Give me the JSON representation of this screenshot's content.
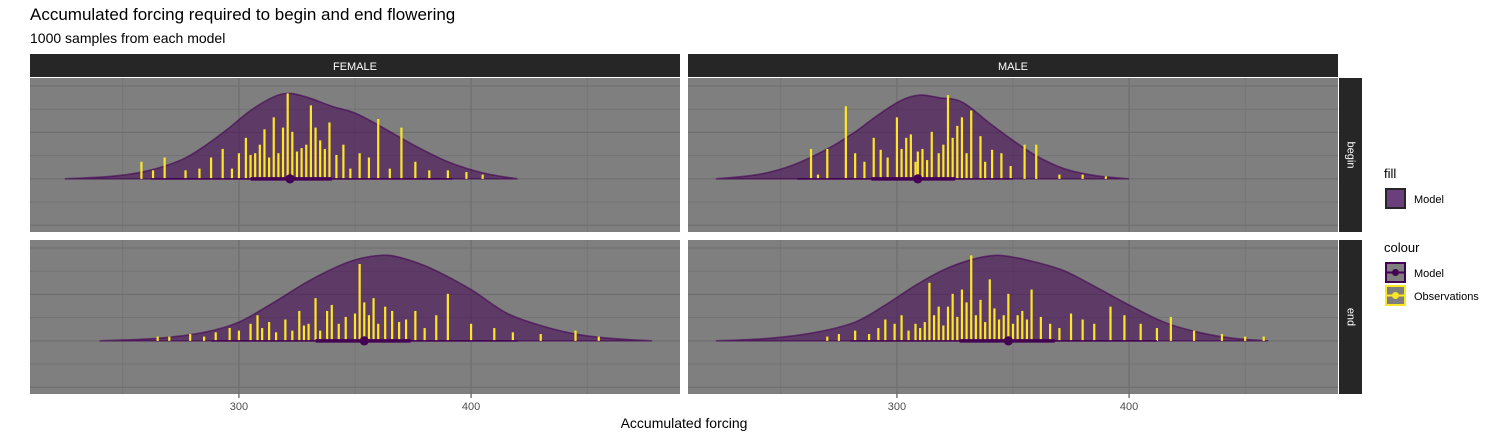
{
  "chart_data": {
    "type": "area",
    "title": "Accumulated forcing required to begin and end flowering",
    "subtitle": "1000 samples from each model",
    "xlabel": "Accumulated forcing",
    "ylabel": "",
    "x_ticks": [
      300,
      400
    ],
    "xlim": [
      210,
      490
    ],
    "columns": [
      "FEMALE",
      "MALE"
    ],
    "rows": [
      "begin",
      "end"
    ],
    "panels": [
      {
        "column": "FEMALE",
        "row": "begin",
        "density": {
          "x": [
            225,
            245,
            260,
            275,
            285,
            295,
            305,
            315,
            322,
            330,
            340,
            350,
            360,
            375,
            390,
            405,
            420
          ],
          "y": [
            0,
            0.03,
            0.09,
            0.22,
            0.38,
            0.58,
            0.8,
            0.96,
            1.0,
            0.95,
            0.85,
            0.77,
            0.63,
            0.4,
            0.2,
            0.07,
            0
          ]
        },
        "point_interval": {
          "median": 322,
          "inner": [
            305,
            340
          ],
          "outer": [
            262,
            392
          ]
        },
        "observations": {
          "x": [
            258,
            263,
            268,
            277,
            283,
            288,
            293,
            297,
            300,
            303,
            305,
            307,
            309,
            311,
            313,
            315,
            317,
            319,
            321,
            323,
            325,
            327,
            329,
            331,
            333,
            335,
            337,
            339,
            342,
            345,
            348,
            352,
            356,
            360,
            365,
            370,
            376,
            382,
            390,
            398,
            405
          ],
          "h": [
            0.2,
            0.1,
            0.25,
            0.1,
            0.12,
            0.25,
            0.35,
            0.12,
            0.3,
            0.48,
            0.28,
            0.3,
            0.4,
            0.58,
            0.25,
            0.72,
            0.3,
            0.6,
            1.0,
            0.55,
            0.32,
            0.36,
            0.4,
            0.86,
            0.6,
            0.45,
            0.35,
            0.66,
            0.28,
            0.4,
            0.12,
            0.3,
            0.25,
            0.7,
            0.12,
            0.6,
            0.2,
            0.1,
            0.1,
            0.08,
            0.05
          ]
        }
      },
      {
        "column": "MALE",
        "row": "begin",
        "density": {
          "x": [
            222,
            240,
            255,
            270,
            282,
            292,
            302,
            310,
            318,
            328,
            340,
            350,
            360,
            372,
            385,
            400
          ],
          "y": [
            0,
            0.05,
            0.16,
            0.35,
            0.55,
            0.75,
            0.92,
            0.98,
            0.95,
            0.9,
            0.65,
            0.45,
            0.27,
            0.12,
            0.04,
            0
          ]
        },
        "point_interval": {
          "median": 309,
          "inner": [
            289,
            325
          ],
          "outer": [
            257,
            350
          ]
        },
        "observations": {
          "x": [
            263,
            266,
            270,
            278,
            282,
            286,
            290,
            293,
            296,
            300,
            302,
            304,
            306,
            308,
            309,
            311,
            313,
            315,
            318,
            320,
            322,
            324,
            326,
            328,
            330,
            332,
            336,
            338,
            341,
            345,
            349,
            355,
            360,
            370,
            380,
            390
          ],
          "h": [
            0.35,
            0.05,
            0.35,
            0.85,
            0.3,
            0.2,
            0.48,
            0.34,
            0.25,
            0.72,
            0.35,
            0.48,
            0.52,
            0.2,
            0.32,
            0.35,
            0.22,
            0.55,
            0.3,
            0.4,
            0.98,
            0.48,
            0.62,
            0.72,
            0.3,
            0.8,
            0.5,
            0.2,
            0.34,
            0.3,
            0.15,
            0.4,
            0.4,
            0.05,
            0.05,
            0.03
          ]
        }
      },
      {
        "column": "FEMALE",
        "row": "end",
        "density": {
          "x": [
            240,
            265,
            285,
            300,
            315,
            330,
            345,
            355,
            365,
            375,
            385,
            400,
            415,
            430,
            445,
            460,
            478
          ],
          "y": [
            0,
            0.03,
            0.1,
            0.22,
            0.45,
            0.7,
            0.9,
            0.98,
            1.0,
            0.93,
            0.82,
            0.6,
            0.33,
            0.18,
            0.08,
            0.03,
            0
          ]
        },
        "point_interval": {
          "median": 354,
          "inner": [
            333,
            374
          ],
          "outer": [
            288,
            420
          ]
        },
        "observations": {
          "x": [
            265,
            270,
            279,
            285,
            290,
            296,
            300,
            305,
            308,
            310,
            313,
            316,
            320,
            323,
            326,
            328,
            330,
            333,
            335,
            338,
            340,
            343,
            346,
            350,
            352,
            354,
            356,
            358,
            360,
            363,
            366,
            369,
            372,
            376,
            380,
            385,
            390,
            400,
            410,
            418,
            430,
            445,
            455
          ],
          "h": [
            0.05,
            0.05,
            0.08,
            0.05,
            0.1,
            0.15,
            0.12,
            0.2,
            0.3,
            0.15,
            0.22,
            0.1,
            0.25,
            0.12,
            0.35,
            0.18,
            0.2,
            0.5,
            0.12,
            0.35,
            0.42,
            0.2,
            0.28,
            0.32,
            0.9,
            0.45,
            0.3,
            0.5,
            0.2,
            0.4,
            0.35,
            0.22,
            0.25,
            0.35,
            0.15,
            0.3,
            0.55,
            0.2,
            0.15,
            0.1,
            0.08,
            0.12,
            0.05
          ]
        }
      },
      {
        "column": "MALE",
        "row": "end",
        "density": {
          "x": [
            222,
            245,
            265,
            282,
            295,
            308,
            320,
            332,
            342,
            350,
            360,
            372,
            385,
            400,
            415,
            430,
            445,
            460
          ],
          "y": [
            0,
            0.03,
            0.1,
            0.22,
            0.42,
            0.65,
            0.83,
            0.95,
            1.0,
            0.98,
            0.92,
            0.82,
            0.64,
            0.42,
            0.22,
            0.1,
            0.03,
            0
          ]
        },
        "point_interval": {
          "median": 348,
          "inner": [
            327,
            368
          ],
          "outer": [
            280,
            412
          ]
        },
        "observations": {
          "x": [
            270,
            275,
            282,
            288,
            292,
            295,
            299,
            302,
            305,
            308,
            310,
            312,
            314,
            316,
            318,
            320,
            322,
            324,
            326,
            328,
            330,
            332,
            334,
            336,
            338,
            340,
            342,
            344,
            346,
            348,
            350,
            352,
            354,
            356,
            358,
            362,
            366,
            370,
            375,
            380,
            385,
            392,
            398,
            405,
            412,
            418,
            428,
            440,
            450,
            458
          ],
          "h": [
            0.05,
            0.08,
            0.12,
            0.08,
            0.15,
            0.25,
            0.2,
            0.3,
            0.12,
            0.2,
            0.15,
            0.22,
            0.68,
            0.3,
            0.4,
            0.18,
            0.4,
            0.55,
            0.28,
            0.6,
            0.45,
            1.0,
            0.3,
            0.48,
            0.22,
            0.72,
            0.38,
            0.25,
            0.3,
            0.55,
            0.2,
            0.3,
            0.35,
            0.25,
            0.6,
            0.28,
            0.2,
            0.15,
            0.32,
            0.25,
            0.2,
            0.4,
            0.3,
            0.2,
            0.15,
            0.28,
            0.12,
            0.08,
            0.05,
            0.05
          ]
        }
      }
    ],
    "colors": {
      "panel_bg": "#7f7f7f",
      "grid": "#6e6e6e",
      "strip_bg": "#262626",
      "model": "#440154",
      "model_fill": "#6b3f7c",
      "observations": "#fde725"
    },
    "legend": {
      "fill": {
        "title": "fill",
        "items": [
          "Model"
        ]
      },
      "colour": {
        "title": "colour",
        "items": [
          "Model",
          "Observations"
        ]
      }
    }
  }
}
